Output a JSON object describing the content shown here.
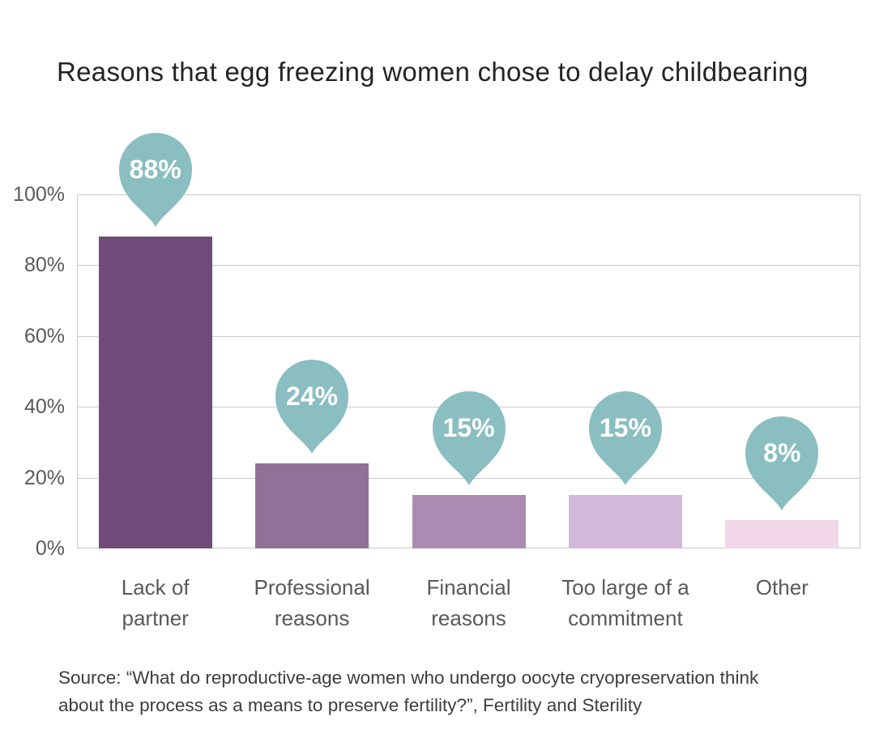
{
  "title": "Reasons that egg freezing women chose to delay childbearing",
  "source": {
    "line1": "Source: “What do reproductive-age women who undergo oocyte cryopreservation think",
    "line2": "about the process as a means to preserve fertility?”, Fertility and Sterility"
  },
  "colors": {
    "title_text": "#242424",
    "axis_text": "#58595b",
    "grid": "#c9c9c9",
    "source_text": "#3d3d3d",
    "balloon": "#8ABEC1",
    "balloon_text": "#ffffff",
    "bars": [
      "#734B7A",
      "#927199",
      "#AC8BB3",
      "#D3B8DC",
      "#F2D7E8"
    ]
  },
  "chart_data": {
    "type": "bar",
    "title": "Reasons that egg freezing women chose to delay childbearing",
    "categories": [
      "Lack of partner",
      "Professional reasons",
      "Financial reasons",
      "Too large of a commitment",
      "Other"
    ],
    "category_label_lines": [
      [
        "Lack of",
        "partner"
      ],
      [
        "Professional",
        "reasons"
      ],
      [
        "Financial",
        "reasons"
      ],
      [
        "Too large of a",
        "commitment"
      ],
      [
        "Other"
      ]
    ],
    "values": [
      88,
      24,
      15,
      15,
      8
    ],
    "value_labels": [
      "88%",
      "24%",
      "15%",
      "15%",
      "8%"
    ],
    "xlabel": "",
    "ylabel": "",
    "y_ticks": [
      "100%",
      "80%",
      "60%",
      "40%",
      "20%",
      "0%"
    ],
    "y_tick_values": [
      100,
      80,
      60,
      40,
      20,
      0
    ],
    "ylim": [
      0,
      100
    ],
    "grid": true,
    "legend": false
  }
}
